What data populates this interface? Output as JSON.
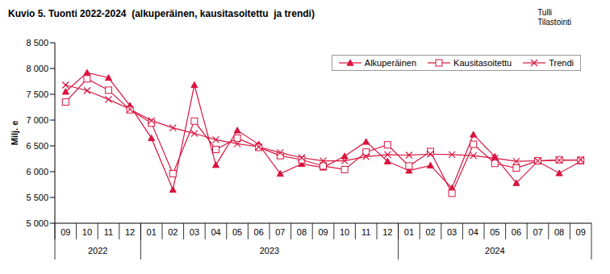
{
  "chart_data": {
    "type": "line",
    "title": "Kuvio 5. Tuonti 2022-2024  (alkuperäinen, kausitasoitettu  ja trendi)",
    "source": [
      "Tulli",
      "Tilastointi"
    ],
    "y_label": "Milj. e",
    "categories": [
      "09",
      "10",
      "11",
      "12",
      "01",
      "02",
      "03",
      "04",
      "05",
      "06",
      "07",
      "08",
      "09",
      "10",
      "11",
      "12",
      "01",
      "02",
      "03",
      "04",
      "05",
      "06",
      "07",
      "08",
      "09"
    ],
    "x_groups": [
      {
        "label": "2022",
        "count": 4
      },
      {
        "label": "2023",
        "count": 12
      },
      {
        "label": "2024",
        "count": 9
      }
    ],
    "series": [
      {
        "name": "Alkuperäinen",
        "color": "#d9143f",
        "marker": "triangle",
        "values": [
          7550,
          7920,
          7820,
          7280,
          6650,
          5650,
          7680,
          6130,
          6800,
          6530,
          5960,
          6150,
          6080,
          6300,
          6580,
          6200,
          6020,
          6120,
          5680,
          6720,
          6290,
          5780,
          6200,
          5970,
          6200
        ]
      },
      {
        "name": "Kausitasoitettu",
        "color": "#d9143f",
        "marker": "square",
        "values": [
          7350,
          7800,
          7580,
          7200,
          6940,
          5960,
          6980,
          6430,
          6650,
          6470,
          6310,
          6230,
          6110,
          6040,
          6380,
          6520,
          6110,
          6390,
          5580,
          6530,
          6160,
          6070,
          6210,
          6230,
          6220
        ]
      },
      {
        "name": "Trendi",
        "color": "#d9143f",
        "marker": "x",
        "values": [
          7680,
          7570,
          7400,
          7210,
          6990,
          6850,
          6740,
          6620,
          6540,
          6480,
          6370,
          6270,
          6210,
          6210,
          6290,
          6330,
          6320,
          6340,
          6330,
          6310,
          6260,
          6200,
          6210,
          6220,
          6230
        ]
      }
    ],
    "ylim": [
      5000,
      8500
    ],
    "yticks": [
      {
        "value": 5000,
        "label": "5 000"
      },
      {
        "value": 5500,
        "label": "5 500"
      },
      {
        "value": 6000,
        "label": "6 000"
      },
      {
        "value": 6500,
        "label": "6 500"
      },
      {
        "value": 7000,
        "label": "7 000"
      },
      {
        "value": 7500,
        "label": "7 500"
      },
      {
        "value": 8000,
        "label": "8 000"
      },
      {
        "value": 8500,
        "label": "8 500"
      }
    ],
    "grid": false,
    "legend": "upper right"
  }
}
